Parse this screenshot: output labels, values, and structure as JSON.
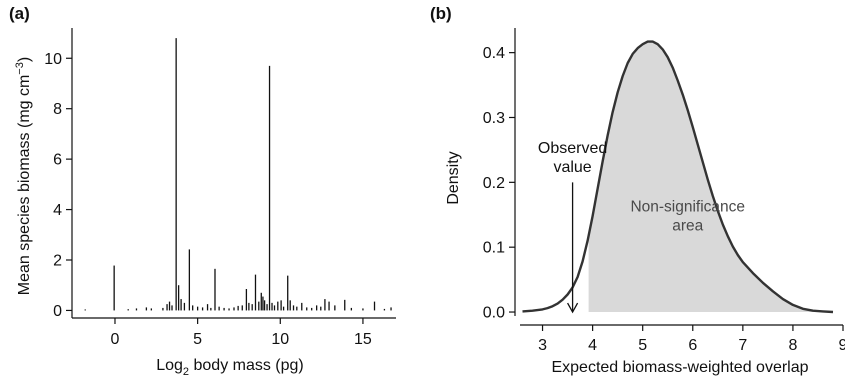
{
  "panels": {
    "a": {
      "letter": "(a)"
    },
    "b": {
      "letter": "(b)"
    }
  },
  "chart_data": [
    {
      "type": "bar",
      "panel": "(a)",
      "title": "",
      "xlabel_main": "Log",
      "xlabel_sub": "2",
      "xlabel_rest": " body mass (pg)",
      "ylabel_main": "Mean species biomass (mg cm",
      "ylabel_sup": "−3",
      "ylabel_rest": ")",
      "xlim": [
        -2.6,
        17.0
      ],
      "ylim": [
        -0.3,
        11.2
      ],
      "xticks": [
        0,
        5,
        10,
        15
      ],
      "yticks": [
        0,
        2,
        4,
        6,
        8,
        10
      ],
      "grid": false,
      "bars": [
        {
          "x": -1.8,
          "y": 0.04
        },
        {
          "x": -0.05,
          "y": 1.78
        },
        {
          "x": 0.8,
          "y": 0.05
        },
        {
          "x": 1.3,
          "y": 0.08
        },
        {
          "x": 1.9,
          "y": 0.12
        },
        {
          "x": 2.2,
          "y": 0.08
        },
        {
          "x": 2.9,
          "y": 0.1
        },
        {
          "x": 3.15,
          "y": 0.25
        },
        {
          "x": 3.3,
          "y": 0.35
        },
        {
          "x": 3.45,
          "y": 0.2
        },
        {
          "x": 3.7,
          "y": 10.8
        },
        {
          "x": 3.85,
          "y": 1.0
        },
        {
          "x": 4.0,
          "y": 0.45
        },
        {
          "x": 4.2,
          "y": 0.3
        },
        {
          "x": 4.5,
          "y": 2.42
        },
        {
          "x": 4.7,
          "y": 0.2
        },
        {
          "x": 5.0,
          "y": 0.15
        },
        {
          "x": 5.3,
          "y": 0.12
        },
        {
          "x": 5.6,
          "y": 0.25
        },
        {
          "x": 5.8,
          "y": 0.1
        },
        {
          "x": 6.05,
          "y": 1.65
        },
        {
          "x": 6.3,
          "y": 0.15
        },
        {
          "x": 6.6,
          "y": 0.1
        },
        {
          "x": 6.9,
          "y": 0.08
        },
        {
          "x": 7.2,
          "y": 0.12
        },
        {
          "x": 7.45,
          "y": 0.18
        },
        {
          "x": 7.7,
          "y": 0.2
        },
        {
          "x": 7.95,
          "y": 0.85
        },
        {
          "x": 8.1,
          "y": 0.3
        },
        {
          "x": 8.3,
          "y": 0.25
        },
        {
          "x": 8.5,
          "y": 1.42
        },
        {
          "x": 8.7,
          "y": 0.35
        },
        {
          "x": 8.85,
          "y": 0.7
        },
        {
          "x": 8.95,
          "y": 0.55
        },
        {
          "x": 9.05,
          "y": 0.4
        },
        {
          "x": 9.2,
          "y": 0.25
        },
        {
          "x": 9.35,
          "y": 9.7
        },
        {
          "x": 9.5,
          "y": 0.3
        },
        {
          "x": 9.65,
          "y": 0.2
        },
        {
          "x": 9.85,
          "y": 0.35
        },
        {
          "x": 10.05,
          "y": 0.4
        },
        {
          "x": 10.2,
          "y": 0.15
        },
        {
          "x": 10.45,
          "y": 1.38
        },
        {
          "x": 10.6,
          "y": 0.4
        },
        {
          "x": 10.8,
          "y": 0.2
        },
        {
          "x": 11.0,
          "y": 0.15
        },
        {
          "x": 11.3,
          "y": 0.3
        },
        {
          "x": 11.6,
          "y": 0.12
        },
        {
          "x": 11.9,
          "y": 0.1
        },
        {
          "x": 12.2,
          "y": 0.2
        },
        {
          "x": 12.45,
          "y": 0.15
        },
        {
          "x": 12.7,
          "y": 0.45
        },
        {
          "x": 12.95,
          "y": 0.35
        },
        {
          "x": 13.3,
          "y": 0.2
        },
        {
          "x": 13.9,
          "y": 0.42
        },
        {
          "x": 14.3,
          "y": 0.1
        },
        {
          "x": 15.0,
          "y": 0.08
        },
        {
          "x": 15.7,
          "y": 0.35
        },
        {
          "x": 16.3,
          "y": 0.06
        },
        {
          "x": 16.7,
          "y": 0.12
        }
      ]
    },
    {
      "type": "area",
      "panel": "(b)",
      "title": "",
      "xlabel": "Expected biomass-weighted overlap",
      "ylabel": "Density",
      "xlim": [
        2.45,
        9.0
      ],
      "ylim": [
        -0.02,
        0.438
      ],
      "xticks": [
        3,
        4,
        5,
        6,
        7,
        8,
        9
      ],
      "yticks": [
        0.0,
        0.1,
        0.2,
        0.3,
        0.4
      ],
      "ytick_labels": [
        "0.0",
        "0.1",
        "0.2",
        "0.3",
        "0.4"
      ],
      "grid": false,
      "density": {
        "x": [
          2.6,
          2.8,
          3.0,
          3.1,
          3.2,
          3.3,
          3.4,
          3.5,
          3.6,
          3.7,
          3.8,
          3.9,
          4.0,
          4.1,
          4.2,
          4.3,
          4.4,
          4.5,
          4.6,
          4.7,
          4.8,
          4.9,
          5.0,
          5.1,
          5.2,
          5.3,
          5.4,
          5.5,
          5.6,
          5.7,
          5.8,
          5.9,
          6.0,
          6.1,
          6.2,
          6.3,
          6.4,
          6.5,
          6.6,
          6.7,
          6.8,
          6.9,
          7.0,
          7.2,
          7.4,
          7.6,
          7.8,
          8.0,
          8.2,
          8.4,
          8.6,
          8.8
        ],
        "y": [
          0.001,
          0.002,
          0.004,
          0.006,
          0.009,
          0.013,
          0.019,
          0.027,
          0.038,
          0.054,
          0.078,
          0.11,
          0.148,
          0.19,
          0.232,
          0.272,
          0.308,
          0.339,
          0.364,
          0.384,
          0.398,
          0.407,
          0.413,
          0.417,
          0.417,
          0.413,
          0.405,
          0.393,
          0.377,
          0.357,
          0.335,
          0.311,
          0.285,
          0.258,
          0.231,
          0.204,
          0.179,
          0.156,
          0.135,
          0.117,
          0.101,
          0.088,
          0.077,
          0.06,
          0.045,
          0.032,
          0.02,
          0.011,
          0.005,
          0.002,
          0.001,
          0.0
        ]
      },
      "shaded_region": {
        "x_start": 3.92,
        "label_line1": "Non-significance",
        "label_line2": "area",
        "label_anchor": [
          5.9,
          0.155
        ]
      },
      "observed": {
        "x": 3.6,
        "label_line1": "Observed",
        "label_line2": "value",
        "label_anchor": [
          3.6,
          0.245
        ],
        "arrow_from_y": 0.2,
        "arrow_to_y": 0.0
      }
    }
  ]
}
